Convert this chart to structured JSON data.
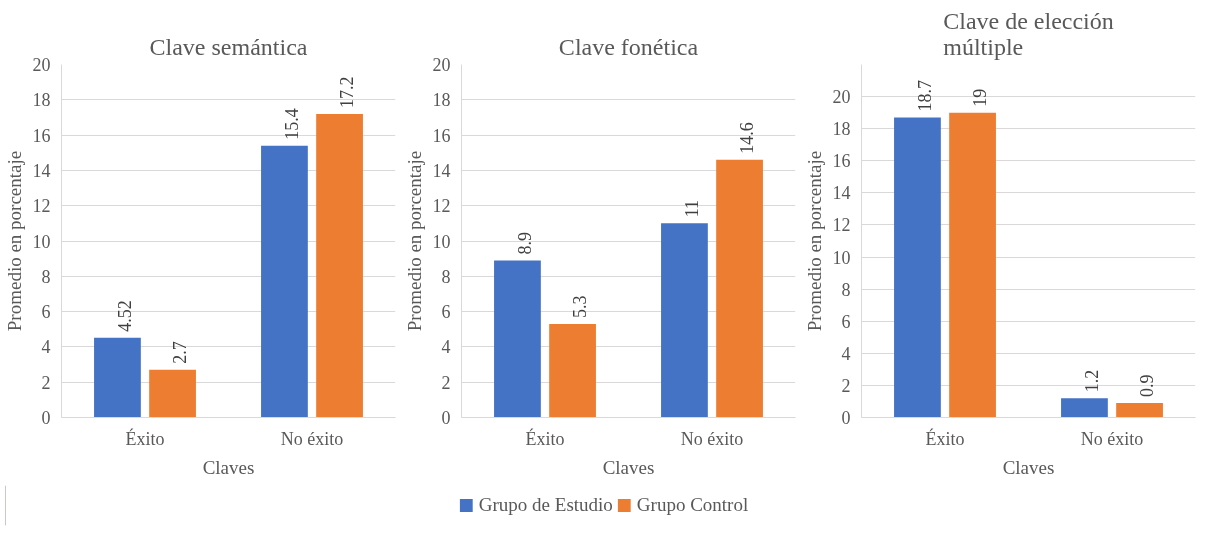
{
  "chart_data": [
    {
      "type": "bar",
      "title": "Clave semántica",
      "xlabel": "Claves",
      "ylabel": "Promedio en porcentaje",
      "categories": [
        "Éxito",
        "No éxito"
      ],
      "series": [
        {
          "name": "Grupo de Estudio",
          "color": "#4472c4",
          "values": [
            4.52,
            15.4
          ]
        },
        {
          "name": "Grupo Control",
          "color": "#ed7d31",
          "values": [
            2.7,
            17.2
          ]
        }
      ],
      "ylim": [
        0,
        20
      ],
      "yticks": [
        0,
        2,
        4,
        6,
        8,
        10,
        12,
        14,
        16,
        18,
        20
      ],
      "grid": "y",
      "data_labels": true,
      "legend": "bottom"
    },
    {
      "type": "bar",
      "title": "Clave fonética",
      "xlabel": "Claves",
      "ylabel": "Promedio en porcentaje",
      "categories": [
        "Éxito",
        "No éxito"
      ],
      "series": [
        {
          "color": "#4472c4",
          "values": [
            8.9,
            11
          ]
        },
        {
          "color": "#ed7d31",
          "values": [
            5.3,
            14.6
          ]
        }
      ],
      "ylim": [
        0,
        20
      ],
      "yticks": [
        0,
        2,
        4,
        6,
        8,
        10,
        12,
        14,
        16,
        18,
        20
      ],
      "grid": "y",
      "data_labels": true
    },
    {
      "type": "bar",
      "title": "Clave de elección múltiple",
      "xlabel": "Claves",
      "ylabel": "Promedio en porcentaje",
      "categories": [
        "Éxito",
        "No éxito"
      ],
      "series": [
        {
          "color": "#4472c4",
          "values": [
            18.7,
            1.2
          ]
        },
        {
          "color": "#ed7d31",
          "values": [
            19,
            0.9
          ]
        }
      ],
      "ylim": [
        0,
        22
      ],
      "yticks": [
        0,
        2,
        4,
        6,
        8,
        10,
        12,
        14,
        16,
        18,
        20
      ],
      "grid": "y",
      "data_labels": true
    }
  ]
}
